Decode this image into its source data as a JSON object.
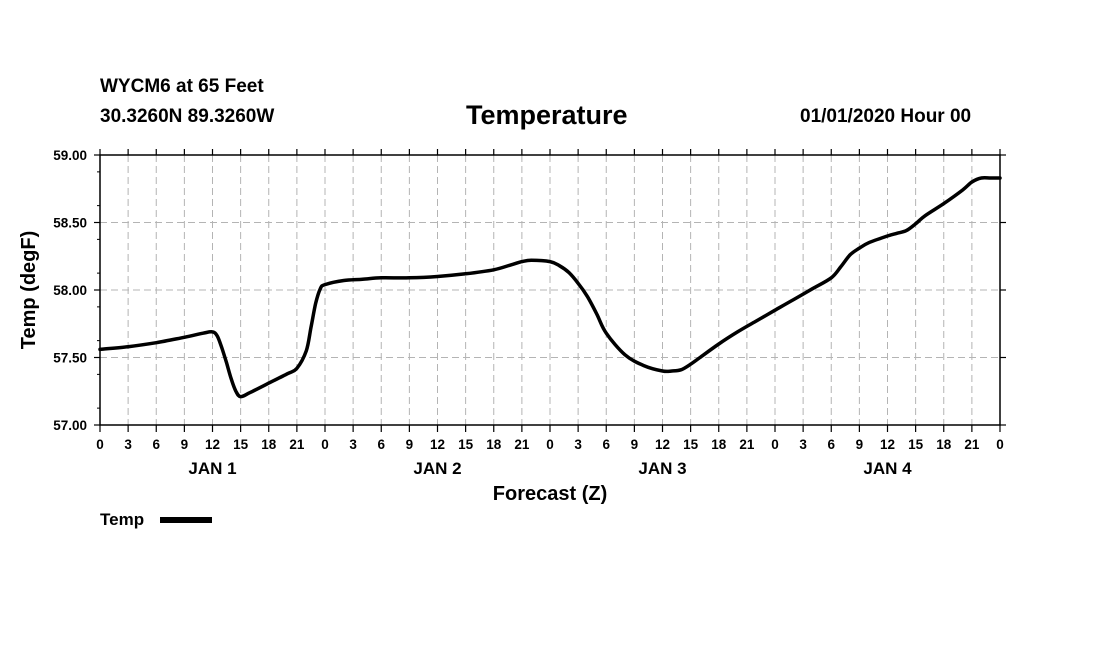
{
  "header": {
    "station": "WYCM6 at 65 Feet",
    "coords": "30.3260N 89.3260W",
    "datetime": "01/01/2020 Hour 00"
  },
  "chart_data": {
    "type": "line",
    "title": "Temperature",
    "xlabel": "Forecast (Z)",
    "ylabel": "Temp (degF)",
    "ylim": [
      57.0,
      59.0
    ],
    "yticks": [
      "57.00",
      "57.50",
      "58.00",
      "58.50",
      "59.00"
    ],
    "xlim_hours": [
      0,
      96
    ],
    "xticks": [
      "0",
      "3",
      "6",
      "9",
      "12",
      "15",
      "18",
      "21",
      "0",
      "3",
      "6",
      "9",
      "12",
      "15",
      "18",
      "21",
      "0",
      "3",
      "6",
      "9",
      "12",
      "15",
      "18",
      "21",
      "0",
      "3",
      "6",
      "9",
      "12",
      "15",
      "18",
      "21",
      "0"
    ],
    "day_labels": [
      "JAN 1",
      "JAN 2",
      "JAN 3",
      "JAN 4"
    ],
    "grid": true,
    "legend_position": "bottom-left",
    "series": [
      {
        "name": "Temp",
        "color": "#000000",
        "x": [
          0,
          3,
          6,
          9,
          11,
          12,
          12.5,
          13,
          13.5,
          14,
          14.5,
          15,
          16,
          18,
          20,
          21,
          22,
          22.5,
          23,
          23.5,
          24,
          26,
          28,
          30,
          33,
          36,
          39,
          42,
          44,
          45,
          46,
          48,
          49,
          50,
          51,
          52,
          53,
          54,
          56,
          58,
          60,
          61,
          62,
          63,
          64,
          66,
          68,
          70,
          72,
          74,
          76,
          78,
          79,
          80,
          81,
          82,
          84,
          85,
          86,
          87,
          88,
          90,
          92,
          93,
          94,
          95,
          96
        ],
        "y": [
          57.56,
          57.58,
          57.61,
          57.65,
          57.68,
          57.69,
          57.66,
          57.57,
          57.46,
          57.34,
          57.25,
          57.21,
          57.24,
          57.31,
          57.38,
          57.42,
          57.55,
          57.72,
          57.9,
          58.01,
          58.04,
          58.07,
          58.08,
          58.09,
          58.09,
          58.1,
          58.12,
          58.15,
          58.19,
          58.21,
          58.22,
          58.21,
          58.18,
          58.13,
          58.05,
          57.95,
          57.82,
          57.68,
          57.52,
          57.44,
          57.4,
          57.4,
          57.41,
          57.45,
          57.5,
          57.6,
          57.69,
          57.77,
          57.85,
          57.93,
          58.01,
          58.09,
          58.17,
          58.26,
          58.31,
          58.35,
          58.4,
          58.42,
          58.44,
          58.49,
          58.55,
          58.64,
          58.74,
          58.8,
          58.83,
          58.83,
          58.83
        ]
      }
    ]
  }
}
